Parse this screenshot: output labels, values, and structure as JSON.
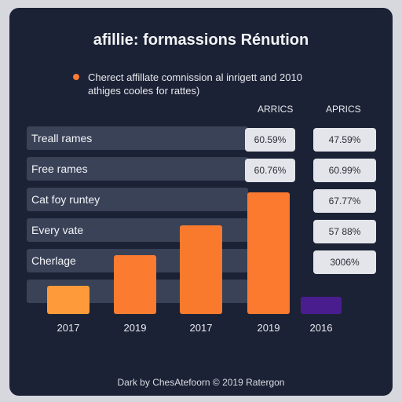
{
  "title": "afillie: formassions Rénution",
  "legend": {
    "line1": "Cherect affillate comnission al inrigett and 2010",
    "line2": "athiges cooles for rattes)",
    "color": "#ff7a33"
  },
  "table": {
    "columns": [
      "ARRICS",
      "APRICS"
    ],
    "rows": [
      {
        "label": "Treall rames",
        "col1": "60.59%",
        "col2": "47.59%"
      },
      {
        "label": "Free rames",
        "col1": "60.76%",
        "col2": "60.99%"
      },
      {
        "label": "Cat foy runtey",
        "col1": "",
        "col2": "67.77%"
      },
      {
        "label": "Every vate",
        "col1": "",
        "col2": "57 88%"
      },
      {
        "label": "Cherlage",
        "col1": "",
        "col2": "3006%"
      },
      {
        "label": "",
        "col1": "",
        "col2": ""
      }
    ]
  },
  "chart_data": {
    "type": "bar",
    "categories": [
      "2017",
      "2019",
      "2017",
      "2019",
      "2016"
    ],
    "values": [
      36,
      75,
      113,
      155,
      22
    ],
    "colors": [
      "#ff9a3a",
      "#fb7c30",
      "#fa7a2d",
      "#fb7a30",
      "#4a1d8f"
    ],
    "ylim": [
      0,
      160
    ],
    "grid": false
  },
  "footer": "Dark by ChesAtefoorn © 2019 Ratergon"
}
